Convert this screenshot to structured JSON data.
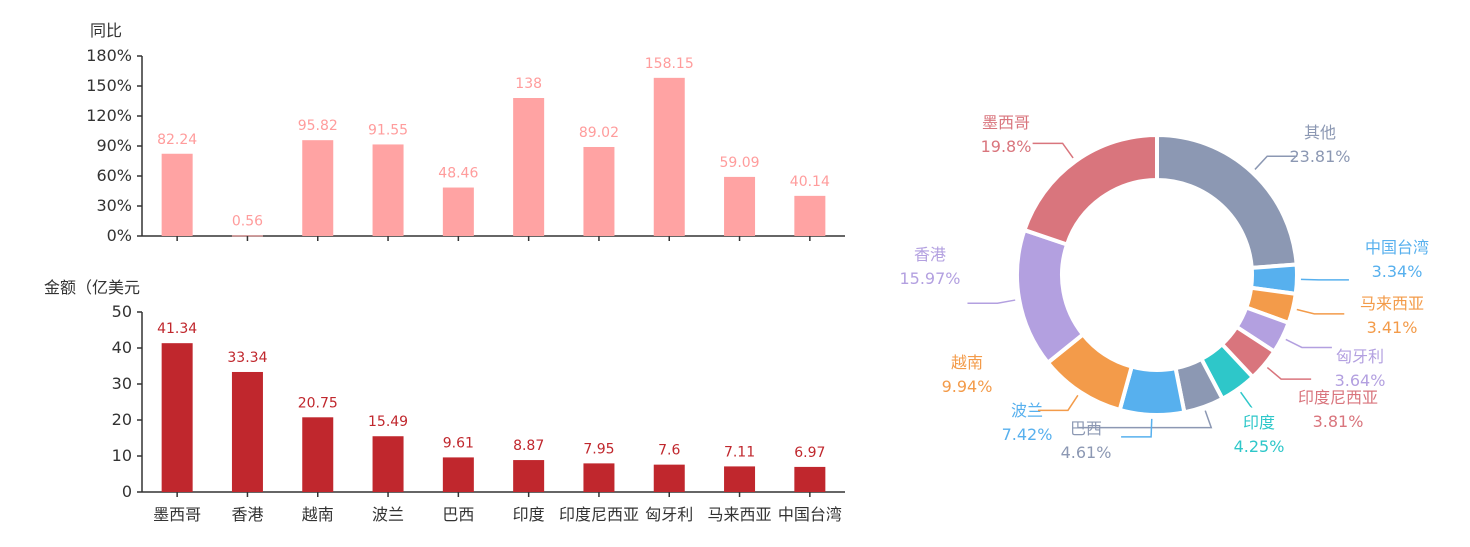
{
  "chart_data": [
    {
      "type": "bar",
      "ylabel": "同比",
      "yticks": [
        "0%",
        "30%",
        "60%",
        "90%",
        "120%",
        "150%",
        "180%"
      ],
      "ylim": [
        0,
        180
      ],
      "categories": [
        "墨西哥",
        "香港",
        "越南",
        "波兰",
        "巴西",
        "印度",
        "印度尼西亚",
        "匈牙利",
        "马来西亚",
        "中国台湾"
      ],
      "values": [
        82.24,
        0.56,
        95.82,
        91.55,
        48.46,
        138,
        89.02,
        158.15,
        59.09,
        40.14
      ],
      "value_labels": [
        "82.24",
        "0.56",
        "95.82",
        "91.55",
        "48.46",
        "138",
        "89.02",
        "158.15",
        "59.09",
        "40.14"
      ],
      "color": "#FFA3A3",
      "label_color": "#FF9C9C",
      "grid": false
    },
    {
      "type": "bar",
      "ylabel": "金额（亿美元",
      "yticks": [
        "0",
        "10",
        "20",
        "30",
        "40",
        "50"
      ],
      "ylim": [
        0,
        50
      ],
      "categories": [
        "墨西哥",
        "香港",
        "越南",
        "波兰",
        "巴西",
        "印度",
        "印度尼西亚",
        "匈牙利",
        "马来西亚",
        "中国台湾"
      ],
      "values": [
        41.34,
        33.34,
        20.75,
        15.49,
        9.61,
        8.87,
        7.95,
        7.6,
        7.11,
        6.97
      ],
      "value_labels": [
        "41.34",
        "33.34",
        "20.75",
        "15.49",
        "9.61",
        "8.87",
        "7.95",
        "7.6",
        "7.11",
        "6.97"
      ],
      "color": "#C0272D",
      "label_color": "#C0272D",
      "grid": false
    },
    {
      "type": "pie",
      "style": "donut",
      "slices": [
        {
          "name": "其他",
          "value": 23.81,
          "label": "23.81%",
          "color": "#8C98B3"
        },
        {
          "name": "中国台湾",
          "value": 3.34,
          "label": "3.34%",
          "color": "#57B0EE"
        },
        {
          "name": "马来西亚",
          "value": 3.41,
          "label": "3.41%",
          "color": "#F39B4A"
        },
        {
          "name": "匈牙利",
          "value": 3.64,
          "label": "3.64%",
          "color": "#B3A0E0"
        },
        {
          "name": "印度尼西亚",
          "value": 3.81,
          "label": "3.81%",
          "color": "#D9757D"
        },
        {
          "name": "印度",
          "value": 4.25,
          "label": "4.25%",
          "color": "#2EC7C9"
        },
        {
          "name": "巴西",
          "value": 4.61,
          "label": "4.61%",
          "color": "#8C98B3"
        },
        {
          "name": "波兰",
          "value": 7.42,
          "label": "7.42%",
          "color": "#57B0EE"
        },
        {
          "name": "越南",
          "value": 9.94,
          "label": "9.94%",
          "color": "#F39B4A"
        },
        {
          "name": "香港",
          "value": 15.97,
          "label": "15.97%",
          "color": "#B3A0E0"
        },
        {
          "name": "墨西哥",
          "value": 19.8,
          "label": "19.8%",
          "color": "#D9757D"
        }
      ]
    }
  ]
}
